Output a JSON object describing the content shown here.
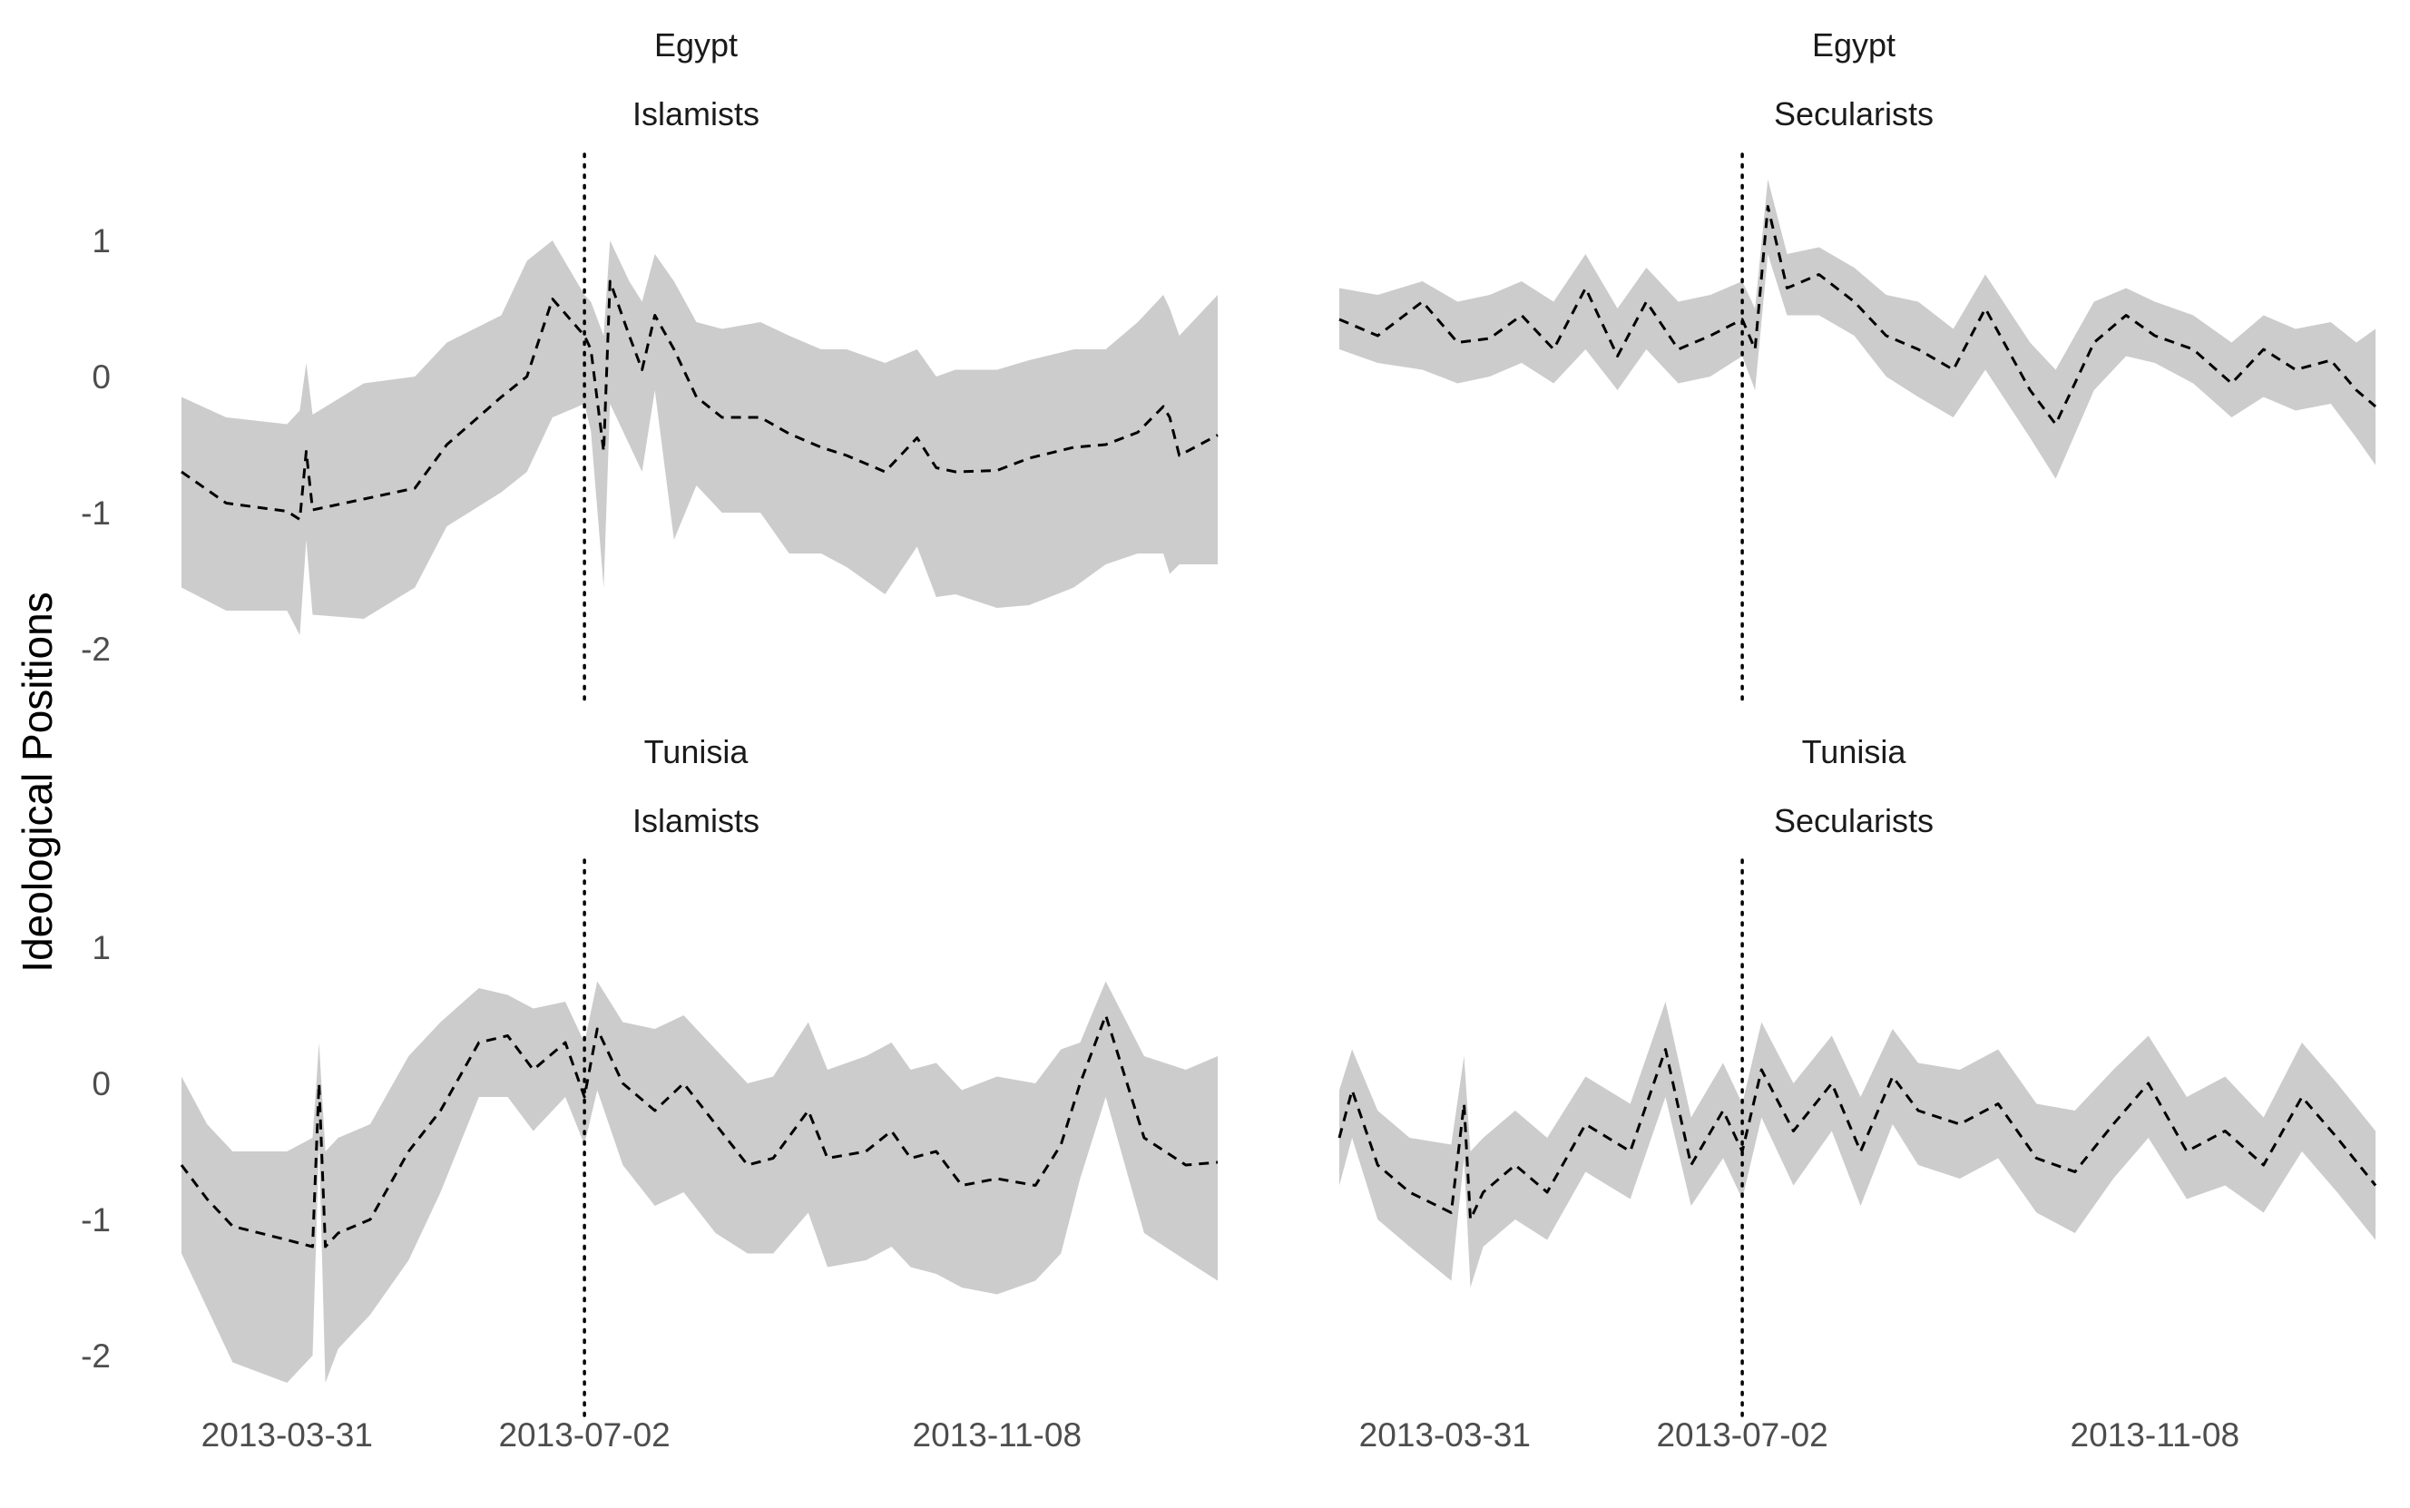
{
  "figure": {
    "ylabel": "Ideological Positions",
    "x_ticks": [
      "2013-03-31",
      "2013-07-02",
      "2013-11-08"
    ],
    "y_ticks": [
      "1",
      "0",
      "-1",
      "-2"
    ],
    "colors": {
      "ribbon": "#cccccc",
      "line": "#000000",
      "vline": "#000000",
      "background": "#ffffff"
    }
  },
  "chart_data": [
    {
      "type": "area",
      "panel": "top-left",
      "strip": [
        "Egypt",
        "Islamists"
      ],
      "xlabel": "",
      "ylabel": "Ideological Positions",
      "x_axis": "date",
      "ylim": [
        -2.5,
        1.6
      ],
      "grid": false,
      "vline": "2013-07-02",
      "series": [
        {
          "style": "dashed line with grey ribbon",
          "x": [
            "2013-02-26",
            "2013-03-12",
            "2013-03-31",
            "2013-04-04",
            "2013-04-06",
            "2013-04-08",
            "2013-04-24",
            "2013-05-10",
            "2013-05-20",
            "2013-06-06",
            "2013-06-14",
            "2013-06-22",
            "2013-07-02",
            "2013-07-04",
            "2013-07-08",
            "2013-07-10",
            "2013-07-16",
            "2013-07-20",
            "2013-07-24",
            "2013-07-30",
            "2013-08-06",
            "2013-08-14",
            "2013-08-26",
            "2013-09-04",
            "2013-09-14",
            "2013-09-22",
            "2013-10-04",
            "2013-10-14",
            "2013-10-20",
            "2013-10-26",
            "2013-11-08",
            "2013-11-18",
            "2013-12-02",
            "2013-12-12",
            "2013-12-22",
            "2013-12-30",
            "2014-01-01",
            "2014-01-04",
            "2014-01-16"
          ],
          "y": [
            -0.7,
            -0.93,
            -0.99,
            -1.05,
            -0.55,
            -0.98,
            -0.9,
            -0.82,
            -0.5,
            -0.15,
            0.0,
            0.57,
            0.3,
            0.2,
            -0.55,
            0.7,
            0.3,
            0.05,
            0.45,
            0.2,
            -0.15,
            -0.3,
            -0.3,
            -0.42,
            -0.52,
            -0.58,
            -0.7,
            -0.45,
            -0.67,
            -0.7,
            -0.69,
            -0.6,
            -0.52,
            -0.5,
            -0.41,
            -0.22,
            -0.3,
            -0.58,
            -0.43
          ],
          "lower": [
            -1.55,
            -1.72,
            -1.72,
            -1.9,
            -1.2,
            -1.75,
            -1.78,
            -1.55,
            -1.1,
            -0.85,
            -0.7,
            -0.3,
            -0.2,
            -0.4,
            -1.55,
            -0.2,
            -0.5,
            -0.7,
            -0.1,
            -1.2,
            -0.8,
            -1.0,
            -1.0,
            -1.3,
            -1.3,
            -1.4,
            -1.6,
            -1.25,
            -1.62,
            -1.6,
            -1.7,
            -1.68,
            -1.55,
            -1.38,
            -1.3,
            -1.3,
            -1.45,
            -1.38,
            -1.38
          ],
          "upper": [
            -0.15,
            -0.3,
            -0.35,
            -0.25,
            0.1,
            -0.28,
            -0.05,
            0.0,
            0.25,
            0.45,
            0.85,
            1.0,
            0.6,
            0.55,
            0.3,
            1.0,
            0.7,
            0.55,
            0.9,
            0.7,
            0.4,
            0.35,
            0.4,
            0.3,
            0.2,
            0.2,
            0.1,
            0.2,
            0.0,
            0.05,
            0.05,
            0.12,
            0.2,
            0.2,
            0.4,
            0.6,
            0.5,
            0.3,
            0.6
          ]
        }
      ]
    },
    {
      "type": "area",
      "panel": "top-right",
      "strip": [
        "Egypt",
        "Secularists"
      ],
      "xlabel": "",
      "ylabel": "",
      "x_axis": "date",
      "ylim": [
        -2.5,
        1.6
      ],
      "grid": false,
      "vline": "2013-07-02",
      "series": [
        {
          "style": "dashed line with grey ribbon",
          "x": [
            "2013-02-26",
            "2013-03-10",
            "2013-03-24",
            "2013-04-04",
            "2013-04-14",
            "2013-04-24",
            "2013-05-04",
            "2013-05-14",
            "2013-05-24",
            "2013-06-02",
            "2013-06-12",
            "2013-06-22",
            "2013-07-02",
            "2013-07-06",
            "2013-07-10",
            "2013-07-16",
            "2013-07-26",
            "2013-08-06",
            "2013-08-16",
            "2013-08-26",
            "2013-09-06",
            "2013-09-16",
            "2013-09-30",
            "2013-10-08",
            "2013-10-20",
            "2013-10-30",
            "2013-11-08",
            "2013-11-20",
            "2013-12-02",
            "2013-12-12",
            "2013-12-22",
            "2014-01-02",
            "2014-01-10",
            "2014-01-16"
          ],
          "y": [
            0.42,
            0.3,
            0.55,
            0.25,
            0.28,
            0.45,
            0.2,
            0.65,
            0.15,
            0.55,
            0.2,
            0.3,
            0.42,
            0.2,
            1.25,
            0.65,
            0.75,
            0.55,
            0.3,
            0.2,
            0.05,
            0.5,
            -0.1,
            -0.35,
            0.25,
            0.45,
            0.3,
            0.2,
            -0.05,
            0.2,
            0.05,
            0.12,
            -0.1,
            -0.22
          ],
          "lower": [
            0.2,
            0.1,
            0.05,
            -0.05,
            0.0,
            0.1,
            -0.05,
            0.2,
            -0.1,
            0.2,
            -0.05,
            0.0,
            0.15,
            -0.1,
            0.9,
            0.45,
            0.45,
            0.3,
            0.0,
            -0.15,
            -0.3,
            0.05,
            -0.45,
            -0.75,
            -0.1,
            0.15,
            0.1,
            -0.05,
            -0.3,
            -0.15,
            -0.25,
            -0.2,
            -0.45,
            -0.65
          ],
          "upper": [
            0.65,
            0.6,
            0.7,
            0.55,
            0.6,
            0.7,
            0.55,
            0.9,
            0.5,
            0.8,
            0.55,
            0.6,
            0.7,
            0.5,
            1.45,
            0.9,
            0.95,
            0.8,
            0.6,
            0.55,
            0.35,
            0.75,
            0.25,
            0.05,
            0.55,
            0.65,
            0.55,
            0.45,
            0.25,
            0.45,
            0.35,
            0.4,
            0.25,
            0.35
          ]
        }
      ]
    },
    {
      "type": "area",
      "panel": "bottom-left",
      "strip": [
        "Tunisia",
        "Islamists"
      ],
      "xlabel": "",
      "ylabel": "",
      "x_axis": "date",
      "ylim": [
        -2.5,
        1.6
      ],
      "grid": false,
      "vline": "2013-07-02",
      "series": [
        {
          "style": "dashed line with grey ribbon",
          "x": [
            "2013-02-26",
            "2013-03-06",
            "2013-03-14",
            "2013-03-31",
            "2013-04-08",
            "2013-04-10",
            "2013-04-12",
            "2013-04-16",
            "2013-04-26",
            "2013-05-08",
            "2013-05-18",
            "2013-05-30",
            "2013-06-08",
            "2013-06-16",
            "2013-06-26",
            "2013-07-02",
            "2013-07-06",
            "2013-07-14",
            "2013-07-24",
            "2013-08-02",
            "2013-08-12",
            "2013-08-22",
            "2013-08-30",
            "2013-09-10",
            "2013-09-16",
            "2013-09-28",
            "2013-10-06",
            "2013-10-12",
            "2013-10-20",
            "2013-10-28",
            "2013-11-08",
            "2013-11-20",
            "2013-11-28",
            "2013-12-04",
            "2013-12-12",
            "2013-12-24",
            "2014-01-06",
            "2014-01-16"
          ],
          "y": [
            -0.6,
            -0.85,
            -1.05,
            -1.15,
            -1.2,
            0.0,
            -1.2,
            -1.1,
            -1.0,
            -0.5,
            -0.2,
            0.3,
            0.35,
            0.1,
            0.3,
            -0.1,
            0.4,
            0.0,
            -0.2,
            0.0,
            -0.3,
            -0.6,
            -0.55,
            -0.2,
            -0.55,
            -0.5,
            -0.35,
            -0.55,
            -0.5,
            -0.75,
            -0.7,
            -0.75,
            -0.45,
            0.0,
            0.5,
            -0.4,
            -0.6,
            -0.58
          ],
          "lower": [
            -1.25,
            -1.65,
            -2.05,
            -2.2,
            -2.0,
            -0.45,
            -2.2,
            -1.95,
            -1.7,
            -1.3,
            -0.8,
            -0.1,
            -0.1,
            -0.35,
            -0.1,
            -0.45,
            -0.05,
            -0.6,
            -0.9,
            -0.8,
            -1.1,
            -1.25,
            -1.25,
            -0.95,
            -1.35,
            -1.3,
            -1.2,
            -1.35,
            -1.4,
            -1.5,
            -1.55,
            -1.45,
            -1.25,
            -0.7,
            -0.1,
            -1.1,
            -1.3,
            -1.45
          ],
          "upper": [
            0.05,
            -0.3,
            -0.5,
            -0.5,
            -0.4,
            0.3,
            -0.5,
            -0.4,
            -0.3,
            0.2,
            0.45,
            0.7,
            0.65,
            0.55,
            0.6,
            0.3,
            0.75,
            0.45,
            0.4,
            0.5,
            0.25,
            0.0,
            0.05,
            0.45,
            0.1,
            0.2,
            0.3,
            0.1,
            0.15,
            -0.05,
            0.05,
            0.0,
            0.25,
            0.3,
            0.75,
            0.2,
            0.1,
            0.2
          ]
        }
      ]
    },
    {
      "type": "area",
      "panel": "bottom-right",
      "strip": [
        "Tunisia",
        "Secularists"
      ],
      "xlabel": "",
      "ylabel": "",
      "x_axis": "date",
      "ylim": [
        -2.5,
        1.6
      ],
      "grid": false,
      "vline": "2013-07-02",
      "series": [
        {
          "style": "dashed line with grey ribbon",
          "x": [
            "2013-02-26",
            "2013-03-02",
            "2013-03-10",
            "2013-03-20",
            "2013-04-02",
            "2013-04-06",
            "2013-04-08",
            "2013-04-12",
            "2013-04-22",
            "2013-05-02",
            "2013-05-14",
            "2013-05-28",
            "2013-06-08",
            "2013-06-16",
            "2013-06-26",
            "2013-07-02",
            "2013-07-08",
            "2013-07-18",
            "2013-07-30",
            "2013-08-08",
            "2013-08-18",
            "2013-08-26",
            "2013-09-08",
            "2013-09-20",
            "2013-10-02",
            "2013-10-14",
            "2013-10-26",
            "2013-11-06",
            "2013-11-18",
            "2013-11-30",
            "2013-12-12",
            "2013-12-24",
            "2014-01-04",
            "2014-01-16"
          ],
          "y": [
            -0.4,
            -0.05,
            -0.6,
            -0.8,
            -0.95,
            -0.15,
            -1.0,
            -0.8,
            -0.6,
            -0.8,
            -0.3,
            -0.5,
            0.25,
            -0.6,
            -0.2,
            -0.5,
            0.1,
            -0.35,
            0.0,
            -0.5,
            0.05,
            -0.2,
            -0.3,
            -0.15,
            -0.55,
            -0.65,
            -0.3,
            0.0,
            -0.5,
            -0.35,
            -0.6,
            -0.1,
            -0.4,
            -0.75
          ],
          "lower": [
            -0.75,
            -0.4,
            -1.0,
            -1.2,
            -1.45,
            -0.55,
            -1.5,
            -1.2,
            -1.0,
            -1.15,
            -0.65,
            -0.85,
            -0.1,
            -0.9,
            -0.55,
            -0.85,
            -0.25,
            -0.75,
            -0.35,
            -0.9,
            -0.3,
            -0.6,
            -0.7,
            -0.55,
            -0.95,
            -1.1,
            -0.7,
            -0.4,
            -0.85,
            -0.75,
            -0.95,
            -0.5,
            -0.8,
            -1.15
          ],
          "upper": [
            -0.05,
            0.25,
            -0.2,
            -0.4,
            -0.45,
            0.2,
            -0.5,
            -0.4,
            -0.2,
            -0.4,
            0.05,
            -0.15,
            0.6,
            -0.25,
            0.15,
            -0.15,
            0.45,
            0.0,
            0.35,
            -0.1,
            0.4,
            0.15,
            0.1,
            0.25,
            -0.15,
            -0.2,
            0.1,
            0.35,
            -0.1,
            0.05,
            -0.25,
            0.3,
            0.0,
            -0.35
          ]
        }
      ]
    }
  ]
}
